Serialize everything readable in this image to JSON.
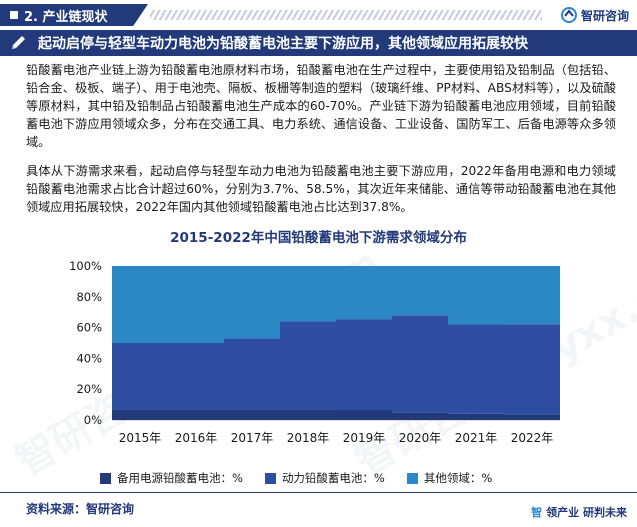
{
  "header": {
    "section_title": "2. 产业链现状",
    "brand": "智研咨询"
  },
  "headline": "起动启停与轻型车动力电池为铅酸蓄电池主要下游应用，其他领域应用拓展较快",
  "paragraphs": [
    "铅酸蓄电池产业链上游为铅酸蓄电池原材料市场，铅酸蓄电池在生产过程中，主要使用铅及铅制品（包括铅、铅合金、极板、端子）、用于电池壳、隔板、板栅等制造的塑料（玻璃纤维、PP材料、ABS材料等），以及硫酸等原材料，其中铅及铅制品占铅酸蓄电池生产成本的60-70%。产业链下游为铅酸蓄电池应用领域，目前铅酸蓄电池下游应用领域众多，分布在交通工具、电力系统、通信设备、工业设备、国防军工、后备电源等众多领域。",
    "具体从下游需求来看，起动启停与轻型车动力电池为铅酸蓄电池主要下游应用，2022年备用电源和电力领域铅酸蓄电池需求占比合计超过60%，分别为3.7%、58.5%，其次近年来储能、通信等带动铅酸蓄电池在其他领域应用拓展较快，2022年国内其他领域铅酸蓄电池占比达到37.8%。"
  ],
  "chart_data": {
    "type": "bar",
    "stacked": true,
    "title": "2015-2022年中国铅酸蓄电池下游需求领域分布",
    "categories": [
      "2015年",
      "2016年",
      "2017年",
      "2018年",
      "2019年",
      "2020年",
      "2021年",
      "2022年"
    ],
    "ylim": [
      0,
      100
    ],
    "yticks": [
      "0%",
      "20%",
      "40%",
      "60%",
      "80%",
      "100%"
    ],
    "grid": false,
    "legend_position": "bottom",
    "series": [
      {
        "name": "备用电源铅酸蓄电池：%",
        "color": "#233a7a",
        "values": [
          7,
          7,
          7,
          7,
          6.5,
          5,
          4,
          3.7
        ]
      },
      {
        "name": "动力铅酸蓄电池：%",
        "color": "#2f4ea3",
        "values": [
          43,
          43,
          46,
          57,
          59,
          63,
          58,
          58.5
        ]
      },
      {
        "name": "其他领域：%",
        "color": "#2b88c5",
        "values": [
          50,
          50,
          47,
          36,
          34.5,
          32,
          38,
          37.8
        ]
      }
    ]
  },
  "footer": {
    "source": "资料来源：智研咨询",
    "brand_left": "智",
    "brand_text": "领产业 研判未来"
  },
  "watermark": "智研咨询 chyxx.com"
}
